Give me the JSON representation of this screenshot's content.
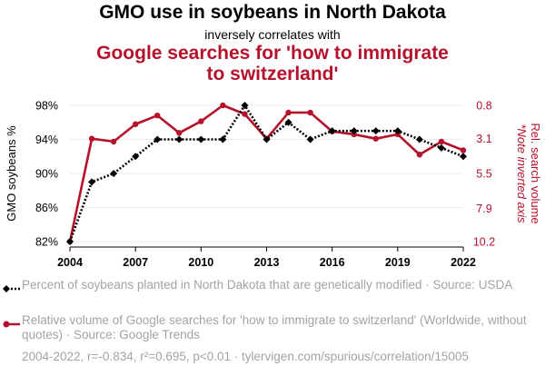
{
  "header": {
    "title": "GMO use in soybeans in North Dakota",
    "subtitle": "inversely correlates with",
    "title2": "Google searches for 'how to immigrate to switzerland'"
  },
  "legend": {
    "series1": "Percent of soybeans planted in North Dakota that are genetically modified · Source: USDA",
    "series2": "Relative volume of Google searches for 'how to immigrate to switzerland' (Worldwide, without quotes) · Source: Google Trends"
  },
  "footer": "2004-2022, r=-0.834, r²=0.695, p<0.01 · tylervigen.com/spurious/correlation/15005",
  "colors": {
    "series1": "#000000",
    "series2": "#b5122b",
    "grid": "#ebebeb",
    "legend_text": "#a3a3a3"
  },
  "chart_data": {
    "type": "line",
    "x": [
      2004,
      2005,
      2006,
      2007,
      2008,
      2009,
      2010,
      2011,
      2012,
      2013,
      2014,
      2015,
      2016,
      2017,
      2018,
      2019,
      2020,
      2021,
      2022
    ],
    "x_ticks": [
      "2004",
      "2007",
      "2010",
      "2013",
      "2016",
      "2019",
      "2022"
    ],
    "xlim": [
      2004,
      2022
    ],
    "y_left": {
      "label": "GMO soybeans %",
      "ticks": [
        "98%",
        "94%",
        "90%",
        "86%",
        "82%"
      ],
      "tick_values": [
        98,
        94,
        90,
        86,
        82
      ],
      "ylim": [
        82,
        98
      ]
    },
    "y_right": {
      "label": "Rel. search volume",
      "note": "*Note inverted axis",
      "inverted": true,
      "ticks": [
        "0.8",
        "3.1",
        "5.5",
        "7.9",
        "10.2"
      ],
      "tick_values": [
        0.8,
        3.1,
        5.5,
        7.9,
        10.2
      ],
      "ylim": [
        0.8,
        10.2
      ]
    },
    "series": [
      {
        "name": "Percent of soybeans planted in North Dakota that are genetically modified",
        "axis": "left",
        "style": "dotted",
        "marker": "diamond",
        "values": [
          82,
          89,
          90,
          92,
          94,
          94,
          94,
          94,
          98,
          94,
          96,
          94,
          95,
          95,
          95,
          95,
          94,
          93,
          92
        ]
      },
      {
        "name": "Relative volume of Google searches for 'how to immigrate to switzerland'",
        "axis": "right",
        "style": "solid",
        "marker": "circle",
        "values": [
          10.2,
          3.1,
          3.3,
          2.1,
          1.5,
          2.7,
          1.9,
          0.8,
          1.4,
          3.1,
          1.3,
          1.3,
          2.6,
          2.8,
          3.1,
          2.8,
          4.2,
          3.3,
          3.9
        ]
      }
    ]
  }
}
